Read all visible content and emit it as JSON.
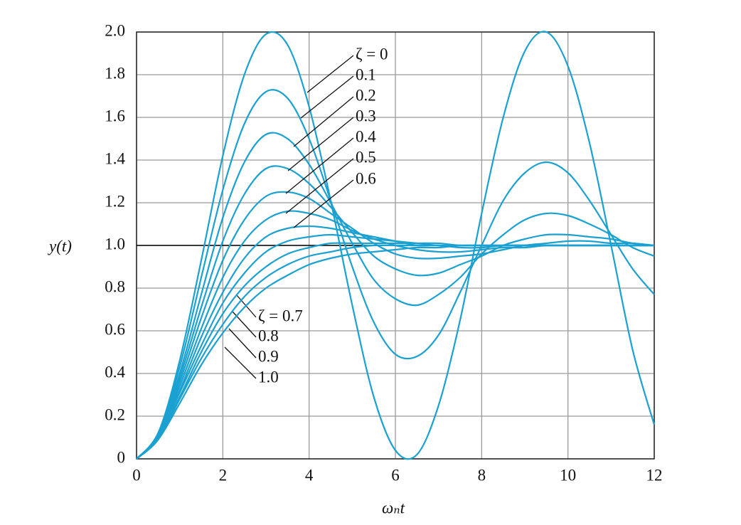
{
  "chart_data": {
    "type": "line",
    "x_label": "ωₙt",
    "y_label": "y(t)",
    "x": [
      0,
      0.5,
      1,
      1.5,
      2,
      2.5,
      3,
      3.5,
      4,
      4.5,
      5,
      5.5,
      6,
      6.5,
      7,
      7.5,
      8,
      8.5,
      9,
      9.5,
      10,
      10.5,
      11,
      11.5,
      12
    ],
    "xlim": [
      0,
      12
    ],
    "xticks": [
      0,
      2,
      4,
      6,
      8,
      10,
      12
    ],
    "ylim": [
      0,
      2
    ],
    "yticks": [
      0,
      0.2,
      0.4,
      0.6,
      0.8,
      {
        "value": 1,
        "label": "1.0"
      },
      1.2,
      1.4,
      1.6,
      1.8,
      {
        "value": 2,
        "label": "2.0"
      }
    ],
    "grid": true,
    "reference_line": 1,
    "series": [
      {
        "name": "ζ = 0",
        "color": "#1ba1d1",
        "values": [
          0,
          0.12,
          0.46,
          0.93,
          1.42,
          1.8,
          1.99,
          1.94,
          1.65,
          1.21,
          0.72,
          0.29,
          0.04,
          0.02,
          0.25,
          0.65,
          1.15,
          1.6,
          1.91,
          2,
          1.84,
          1.48,
          1,
          0.51,
          0.16
        ]
      },
      {
        "name": "0.1",
        "color": "#1ba1d1",
        "values": [
          0,
          0.12,
          0.43,
          0.85,
          1.26,
          1.57,
          1.72,
          1.69,
          1.5,
          1.21,
          0.9,
          0.64,
          0.49,
          0.48,
          0.58,
          0.78,
          1,
          1.21,
          1.34,
          1.39,
          1.34,
          1.21,
          1.05,
          0.89,
          0.77
        ]
      },
      {
        "name": "0.2",
        "color": "#1ba1d1",
        "values": [
          0,
          0.11,
          0.4,
          0.77,
          1.13,
          1.39,
          1.52,
          1.5,
          1.38,
          1.2,
          1.01,
          0.84,
          0.75,
          0.72,
          0.77,
          0.85,
          0.96,
          1.05,
          1.12,
          1.15,
          1.14,
          1.1,
          1.05,
          0.99,
          0.95
        ]
      },
      {
        "name": "0.3",
        "color": "#1ba1d1",
        "values": [
          0,
          0.11,
          0.38,
          0.71,
          1.02,
          1.24,
          1.36,
          1.36,
          1.29,
          1.18,
          1.06,
          0.95,
          0.89,
          0.86,
          0.87,
          0.91,
          0.95,
          1,
          1.03,
          1.05,
          1.05,
          1.04,
          1.03,
          1.01,
          1
        ]
      },
      {
        "name": "0.4",
        "color": "#1ba1d1",
        "values": [
          0,
          0.11,
          0.36,
          0.66,
          0.93,
          1.12,
          1.23,
          1.25,
          1.22,
          1.15,
          1.08,
          1.01,
          0.96,
          0.94,
          0.94,
          0.95,
          0.96,
          0.98,
          1,
          1.01,
          1.02,
          1.02,
          1.01,
          1.01,
          1
        ]
      },
      {
        "name": "0.5",
        "color": "#1ba1d1",
        "values": [
          0,
          0.1,
          0.34,
          0.61,
          0.85,
          1.02,
          1.12,
          1.16,
          1.15,
          1.12,
          1.07,
          1.03,
          1,
          0.98,
          0.97,
          0.97,
          0.98,
          0.99,
          0.99,
          1,
          1,
          1,
          1,
          1,
          1
        ]
      },
      {
        "name": "0.6",
        "color": "#1ba1d1",
        "values": [
          0,
          0.1,
          0.32,
          0.57,
          0.78,
          0.94,
          1.04,
          1.08,
          1.09,
          1.08,
          1.06,
          1.04,
          1.02,
          1,
          1,
          0.99,
          0.99,
          1,
          1,
          1,
          1,
          1,
          1,
          1,
          1
        ]
      },
      {
        "name": "ζ = 0.7",
        "color": "#1ba1d1",
        "values": [
          0,
          0.1,
          0.31,
          0.53,
          0.73,
          0.87,
          0.97,
          1.02,
          1.04,
          1.05,
          1.04,
          1.03,
          1.02,
          1.01,
          1,
          1,
          1,
          1,
          1,
          1,
          1,
          1,
          1,
          1,
          1
        ]
      },
      {
        "name": "0.8",
        "color": "#1ba1d1",
        "values": [
          0,
          0.1,
          0.29,
          0.5,
          0.68,
          0.81,
          0.9,
          0.96,
          0.99,
          1.01,
          1.01,
          1.01,
          1.01,
          1.01,
          1.01,
          1,
          1,
          1,
          1,
          1,
          1,
          1,
          1,
          1,
          1
        ]
      },
      {
        "name": "0.9",
        "color": "#1ba1d1",
        "values": [
          0,
          0.09,
          0.28,
          0.47,
          0.63,
          0.76,
          0.85,
          0.91,
          0.95,
          0.97,
          0.99,
          1,
          1,
          1,
          1,
          1,
          1,
          1,
          1,
          1,
          1,
          1,
          1,
          1,
          1
        ]
      },
      {
        "name": "1.0",
        "color": "#1ba1d1",
        "values": [
          0,
          0.09,
          0.26,
          0.44,
          0.59,
          0.71,
          0.8,
          0.86,
          0.91,
          0.94,
          0.96,
          0.97,
          0.98,
          0.99,
          0.99,
          1,
          1,
          1,
          1,
          1,
          1,
          1,
          1,
          1,
          1
        ]
      }
    ]
  }
}
